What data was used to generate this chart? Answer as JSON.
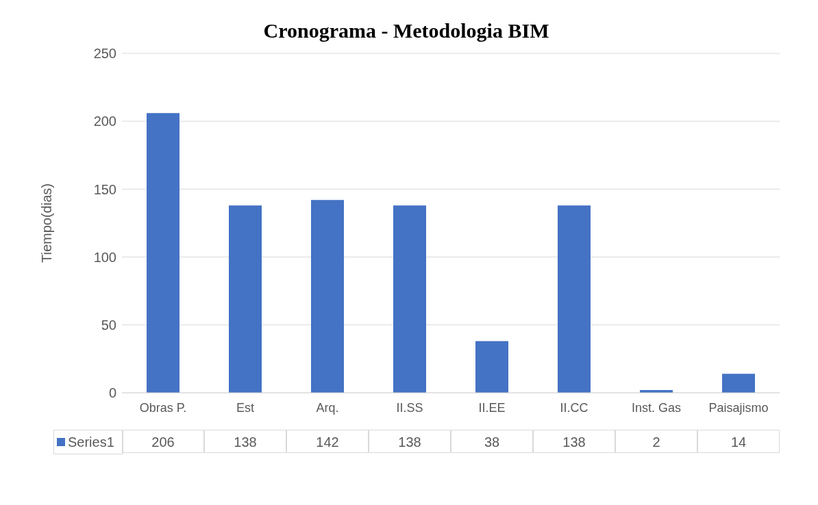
{
  "chart_data": {
    "type": "bar",
    "title": "Cronograma - Metodologia BIM",
    "ylabel": "Tiempo(dias)",
    "categories": [
      "Obras P.",
      "Est",
      "Arq.",
      "II.SS",
      "II.EE",
      "II.CC",
      "Inst. Gas",
      "Paisajismo"
    ],
    "series": [
      {
        "name": "Series1",
        "color": "#4472c4",
        "values": [
          206,
          138,
          142,
          138,
          38,
          138,
          2,
          14
        ]
      }
    ],
    "ylim": [
      0,
      250
    ],
    "yticks": [
      0,
      50,
      100,
      150,
      200,
      250
    ],
    "grid": "y",
    "legend": "bottom",
    "data_labels": true
  }
}
